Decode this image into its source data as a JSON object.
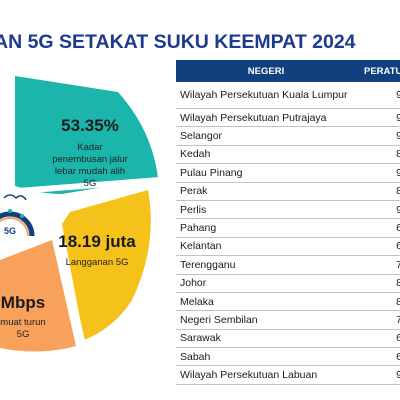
{
  "title": "AN 5G SETAKAT SUKU KEEMPAT 2024",
  "infographic": {
    "stats": [
      {
        "value": "53.35%",
        "label_lines": [
          "Kadar",
          "penembusan jalur",
          "lebar mudah alih",
          "5G"
        ]
      },
      {
        "value": "18.19 juta",
        "label_lines": [
          "Langganan 5G"
        ]
      },
      {
        "value": "Mbps",
        "label_lines": [
          "muat turun",
          "5G"
        ]
      }
    ],
    "badge_text": "5G",
    "colors": {
      "teal": "#1bb5ab",
      "yellow": "#f4c21a",
      "orange": "#f7a15a",
      "navy": "#12407f"
    },
    "icons": [
      "speedometer-icon"
    ]
  },
  "table": {
    "headers": [
      "NEGERI",
      "PERATUS"
    ],
    "rows": [
      {
        "negeri": "Wilayah Persekutuan Kuala Lumpur",
        "peratus": "9"
      },
      {
        "negeri": "Wilayah Persekutuan Putrajaya",
        "peratus": "9"
      },
      {
        "negeri": "Selangor",
        "peratus": "9"
      },
      {
        "negeri": "Kedah",
        "peratus": "8"
      },
      {
        "negeri": "Pulau Pinang",
        "peratus": "9"
      },
      {
        "negeri": "Perak",
        "peratus": "8"
      },
      {
        "negeri": "Perlis",
        "peratus": "9"
      },
      {
        "negeri": "Pahang",
        "peratus": "6"
      },
      {
        "negeri": "Kelantan",
        "peratus": "6"
      },
      {
        "negeri": "Terengganu",
        "peratus": "7"
      },
      {
        "negeri": "Johor",
        "peratus": "8"
      },
      {
        "negeri": "Melaka",
        "peratus": "8"
      },
      {
        "negeri": "Negeri Sembilan",
        "peratus": "7"
      },
      {
        "negeri": "Sarawak",
        "peratus": "6"
      },
      {
        "negeri": "Sabah",
        "peratus": "6"
      },
      {
        "negeri": "Wilayah Persekutuan Labuan",
        "peratus": "9"
      }
    ]
  },
  "chart_data": {
    "type": "table",
    "title": "AN 5G SETAKAT SUKU KEEMPAT 2024",
    "columns": [
      "NEGERI",
      "PERATUS"
    ],
    "rows": [
      [
        "Wilayah Persekutuan Kuala Lumpur",
        "9"
      ],
      [
        "Wilayah Persekutuan Putrajaya",
        "9"
      ],
      [
        "Selangor",
        "9"
      ],
      [
        "Kedah",
        "8"
      ],
      [
        "Pulau Pinang",
        "9"
      ],
      [
        "Perak",
        "8"
      ],
      [
        "Perlis",
        "9"
      ],
      [
        "Pahang",
        "6"
      ],
      [
        "Kelantan",
        "6"
      ],
      [
        "Terengganu",
        "7"
      ],
      [
        "Johor",
        "8"
      ],
      [
        "Melaka",
        "8"
      ],
      [
        "Negeri Sembilan",
        "7"
      ],
      [
        "Sarawak",
        "6"
      ],
      [
        "Sabah",
        "6"
      ],
      [
        "Wilayah Persekutuan Labuan",
        "9"
      ]
    ]
  }
}
